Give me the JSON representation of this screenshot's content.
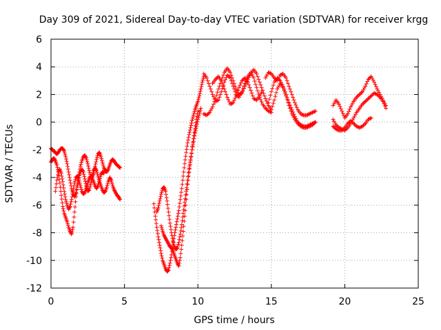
{
  "chart_data": {
    "type": "scatter",
    "title": "Day 309 of 2021, Sidereal Day-to-day VTEC variation (SDTVAR) for receiver krgg",
    "xlabel": "GPS time / hours",
    "ylabel": "SDTVAR / TECUs",
    "xlim": [
      0,
      25
    ],
    "ylim": [
      -12,
      6
    ],
    "xticks": [
      "0",
      "5",
      "10",
      "15",
      "20",
      "25"
    ],
    "yticks": [
      "-12",
      "-10",
      "-8",
      "-6",
      "-4",
      "-2",
      "0",
      "2",
      "4",
      "6"
    ],
    "grid": true,
    "marker": "plus",
    "color": "#ff0000",
    "series": [
      {
        "name": "",
        "segments": [
          {
            "x": [
              0.0,
              0.1,
              0.2,
              0.3,
              0.4,
              0.5,
              0.6,
              0.7,
              0.8,
              0.9,
              1.0,
              1.1,
              1.2,
              1.3,
              1.4,
              1.5,
              1.6,
              1.7,
              1.8,
              1.9,
              2.0,
              2.1,
              2.2,
              2.3,
              2.4,
              2.5,
              2.6,
              2.7,
              2.8,
              2.9,
              3.0,
              3.1,
              3.2,
              3.3,
              3.4,
              3.5,
              3.6,
              3.7,
              3.8,
              3.9,
              4.0,
              4.1,
              4.2,
              4.3,
              4.4,
              4.5,
              4.6,
              4.7
            ],
            "y": [
              -2.9,
              -2.7,
              -2.6,
              -2.8,
              -3.1,
              -3.6,
              -4.4,
              -5.3,
              -6.1,
              -6.6,
              -6.9,
              -7.2,
              -7.6,
              -7.9,
              -8.1,
              -7.6,
              -6.5,
              -5.4,
              -4.6,
              -4.0,
              -3.6,
              -3.4,
              -3.6,
              -4.1,
              -4.6,
              -5.0,
              -4.9,
              -4.5,
              -4.0,
              -3.5,
              -3.3,
              -3.5,
              -3.9,
              -4.3,
              -4.6,
              -4.9,
              -5.1,
              -5.0,
              -4.7,
              -4.3,
              -4.0,
              -4.2,
              -4.6,
              -4.9,
              -5.1,
              -5.3,
              -5.4,
              -5.6
            ]
          },
          {
            "x": [
              0.0,
              0.1,
              0.2,
              0.3,
              0.4,
              0.5,
              0.6,
              0.7,
              0.8,
              0.9,
              1.0,
              1.1,
              1.2,
              1.3,
              1.4,
              1.5,
              1.6,
              1.7,
              1.8,
              1.9,
              2.0,
              2.1,
              2.2,
              2.3,
              2.4,
              2.5,
              2.6,
              2.7,
              2.8,
              2.9,
              3.0,
              3.1,
              3.2,
              3.3,
              3.4,
              3.5,
              3.6,
              3.7,
              3.8,
              3.9,
              4.0,
              4.1,
              4.2,
              4.3,
              4.4,
              4.5,
              4.6,
              4.7
            ],
            "y": [
              -1.9,
              -2.0,
              -2.1,
              -2.2,
              -2.3,
              -2.2,
              -2.0,
              -1.9,
              -1.9,
              -2.1,
              -2.5,
              -3.0,
              -3.6,
              -4.2,
              -4.8,
              -5.2,
              -5.4,
              -5.1,
              -4.5,
              -3.8,
              -3.2,
              -2.8,
              -2.5,
              -2.4,
              -2.6,
              -3.0,
              -3.5,
              -3.9,
              -4.0,
              -3.7,
              -3.2,
              -2.7,
              -2.3,
              -2.2,
              -2.5,
              -2.9,
              -3.3,
              -3.5,
              -3.6,
              -3.4,
              -3.1,
              -2.8,
              -2.7,
              -2.8,
              -3.0,
              -3.1,
              -3.2,
              -3.3
            ]
          },
          {
            "x": [
              0.3,
              0.4,
              0.5,
              0.6,
              0.7,
              0.8,
              0.9,
              1.0,
              1.1,
              1.2,
              1.3,
              1.4,
              1.5,
              1.6,
              1.7,
              1.8,
              1.9,
              2.0,
              2.1,
              2.2,
              2.3,
              2.4,
              2.5,
              2.6,
              2.7,
              2.8,
              2.9,
              3.0,
              3.1,
              3.2,
              3.3,
              3.4,
              3.5,
              3.6
            ],
            "y": [
              -5.0,
              -4.2,
              -3.6,
              -3.4,
              -3.7,
              -4.3,
              -5.0,
              -5.6,
              -6.0,
              -6.3,
              -6.1,
              -5.6,
              -5.0,
              -4.4,
              -4.0,
              -3.9,
              -4.2,
              -4.6,
              -5.0,
              -5.2,
              -5.1,
              -4.8,
              -4.4,
              -4.1,
              -3.9,
              -4.0,
              -4.3,
              -4.6,
              -4.8,
              -4.6,
              -4.2,
              -3.8,
              -3.6,
              -3.7
            ]
          },
          {
            "x": [
              7.0,
              7.1,
              7.2,
              7.3,
              7.4,
              7.5,
              7.6,
              7.7,
              7.8,
              7.9,
              8.0,
              8.1,
              8.2,
              8.3,
              8.4,
              8.5,
              8.6,
              8.7,
              8.8,
              8.9,
              9.0,
              9.1,
              9.2,
              9.3,
              9.4,
              9.5,
              9.6,
              9.7,
              9.8,
              9.9,
              10.0,
              10.1,
              10.2,
              10.3,
              10.4
            ],
            "y": [
              -5.9,
              -6.8,
              -7.6,
              -8.3,
              -8.9,
              -9.5,
              -10.0,
              -10.3,
              -10.6,
              -10.8,
              -10.7,
              -10.2,
              -9.6,
              -8.9,
              -8.2,
              -7.6,
              -7.0,
              -6.4,
              -5.6,
              -4.8,
              -3.9,
              -3.0,
              -2.2,
              -1.5,
              -0.9,
              -0.4,
              0.1,
              0.5,
              0.9,
              1.2,
              1.5,
              1.9,
              2.4,
              2.9,
              3.3
            ]
          },
          {
            "x": [
              7.2,
              7.3,
              7.4,
              7.5,
              7.6,
              7.7,
              7.8,
              7.9,
              8.0,
              8.1,
              8.2,
              8.3,
              8.4,
              8.5,
              8.6,
              8.7,
              8.8,
              8.9,
              9.0,
              9.1,
              9.2,
              9.3,
              9.4,
              9.5,
              9.6,
              9.7,
              9.8,
              9.9,
              10.0,
              10.1,
              10.2
            ],
            "y": [
              -6.5,
              -6.2,
              -5.7,
              -5.2,
              -4.8,
              -4.7,
              -5.0,
              -5.7,
              -6.5,
              -7.3,
              -8.0,
              -8.6,
              -9.0,
              -9.2,
              -9.1,
              -8.7,
              -8.1,
              -7.4,
              -6.6,
              -5.8,
              -5.0,
              -4.2,
              -3.4,
              -2.7,
              -2.0,
              -1.4,
              -0.8,
              -0.3,
              0.2,
              0.6,
              1.0
            ]
          },
          {
            "x": [
              7.5,
              7.6,
              7.7,
              7.8,
              7.9,
              8.0,
              8.1,
              8.2,
              8.3,
              8.4,
              8.5,
              8.6,
              8.7,
              8.8,
              8.9,
              9.0,
              9.1,
              9.2,
              9.3,
              9.4,
              9.5,
              9.6,
              9.7,
              9.8,
              9.9,
              10.0
            ],
            "y": [
              -7.5,
              -7.9,
              -8.2,
              -8.4,
              -8.6,
              -8.8,
              -9.0,
              -9.1,
              -9.3,
              -9.6,
              -9.9,
              -10.2,
              -10.4,
              -9.8,
              -8.9,
              -7.9,
              -6.8,
              -5.6,
              -4.5,
              -3.6,
              -2.8,
              -2.0,
              -1.2,
              -0.5,
              0.2,
              0.8
            ]
          },
          {
            "x": [
              10.4,
              10.6,
              10.8,
              11.0,
              11.2,
              11.4,
              11.6,
              11.8,
              12.0,
              12.2,
              12.4,
              12.6,
              12.8,
              13.0,
              13.2,
              13.4,
              13.6,
              13.8,
              14.0,
              14.2,
              14.4,
              14.6,
              14.8,
              15.0
            ],
            "y": [
              3.5,
              3.2,
              2.6,
              2.0,
              1.5,
              1.6,
              2.2,
              2.9,
              3.4,
              3.2,
              2.6,
              2.0,
              1.8,
              2.2,
              2.8,
              3.3,
              3.6,
              3.2,
              2.5,
              1.8,
              1.3,
              1.0,
              0.8,
              0.7
            ]
          },
          {
            "x": [
              10.4,
              10.6,
              10.8,
              11.0,
              11.2,
              11.4,
              11.6,
              11.8,
              12.0,
              12.2,
              12.4,
              12.6,
              12.8,
              13.0,
              13.2,
              13.4,
              13.6,
              13.8,
              14.0,
              14.2,
              14.4,
              14.6,
              14.8,
              15.0
            ],
            "y": [
              0.6,
              0.5,
              0.7,
              1.1,
              1.7,
              2.4,
              3.0,
              3.6,
              3.9,
              3.6,
              3.0,
              2.4,
              2.0,
              2.1,
              2.6,
              3.1,
              3.5,
              3.8,
              3.5,
              2.9,
              2.3,
              1.7,
              1.2,
              0.9
            ]
          },
          {
            "x": [
              11.0,
              11.2,
              11.4,
              11.6,
              11.8,
              12.0,
              12.2,
              12.4,
              12.6,
              12.8,
              13.0,
              13.2,
              13.4,
              13.6,
              13.8,
              14.0,
              14.2,
              14.4
            ],
            "y": [
              2.8,
              3.1,
              3.3,
              3.0,
              2.4,
              1.8,
              1.3,
              1.4,
              1.9,
              2.5,
              3.0,
              3.2,
              2.9,
              2.3,
              1.7,
              1.6,
              1.9,
              2.3
            ]
          },
          {
            "x": [
              14.6,
              14.8,
              15.0,
              15.2,
              15.4,
              15.6,
              15.8,
              16.0,
              16.2,
              16.4,
              16.6,
              16.8,
              17.0,
              17.2,
              17.4,
              17.6,
              17.8,
              18.0
            ],
            "y": [
              3.2,
              3.6,
              3.5,
              3.2,
              3.0,
              3.4,
              3.5,
              3.2,
              2.6,
              2.0,
              1.4,
              0.9,
              0.6,
              0.5,
              0.5,
              0.6,
              0.7,
              0.8
            ]
          },
          {
            "x": [
              14.8,
              15.0,
              15.2,
              15.4,
              15.6,
              15.8,
              16.0,
              16.2,
              16.4,
              16.6,
              16.8,
              17.0,
              17.2,
              17.4,
              17.6,
              17.8,
              18.0
            ],
            "y": [
              1.4,
              2.2,
              2.9,
              3.2,
              3.0,
              2.6,
              2.0,
              1.4,
              0.9,
              0.4,
              0.0,
              -0.2,
              -0.3,
              -0.3,
              -0.2,
              -0.1,
              0.0
            ]
          },
          {
            "x": [
              15.0,
              15.2,
              15.4,
              15.6,
              15.8,
              16.0,
              16.2,
              16.4,
              16.6,
              16.8,
              17.0,
              17.2,
              17.4,
              17.6,
              17.8,
              18.0
            ],
            "y": [
              0.9,
              1.6,
              2.4,
              2.8,
              2.5,
              1.9,
              1.2,
              0.6,
              0.2,
              -0.1,
              -0.3,
              -0.4,
              -0.4,
              -0.3,
              -0.2,
              0.0
            ]
          },
          {
            "x": [
              19.2,
              19.4,
              19.6,
              19.8,
              20.0,
              20.2,
              20.4,
              20.6,
              20.8,
              21.0,
              21.2,
              21.4,
              21.6,
              21.8,
              22.0,
              22.2,
              22.4,
              22.6,
              22.8
            ],
            "y": [
              1.2,
              1.6,
              1.3,
              0.8,
              0.3,
              0.6,
              1.1,
              1.5,
              1.8,
              2.0,
              2.2,
              2.6,
              3.1,
              3.3,
              2.9,
              2.4,
              2.0,
              1.6,
              1.2
            ]
          },
          {
            "x": [
              19.2,
              19.4,
              19.6,
              19.8,
              20.0,
              20.2,
              20.4,
              20.6,
              20.8,
              21.0,
              21.2,
              21.4,
              21.6,
              21.8,
              22.0,
              22.2,
              22.4,
              22.6,
              22.8
            ],
            "y": [
              0.2,
              -0.2,
              -0.4,
              -0.5,
              -0.6,
              -0.4,
              -0.1,
              0.3,
              0.7,
              1.0,
              1.3,
              1.5,
              1.7,
              1.9,
              2.1,
              2.0,
              1.8,
              1.5,
              1.0
            ]
          },
          {
            "x": [
              19.2,
              19.4,
              19.6,
              19.8,
              20.0,
              20.2,
              20.4,
              20.6,
              20.8,
              21.0,
              21.2,
              21.4,
              21.6,
              21.8
            ],
            "y": [
              -0.3,
              -0.5,
              -0.6,
              -0.6,
              -0.4,
              -0.1,
              0.1,
              -0.1,
              -0.3,
              -0.4,
              -0.3,
              -0.1,
              0.2,
              0.3
            ]
          }
        ]
      }
    ]
  }
}
